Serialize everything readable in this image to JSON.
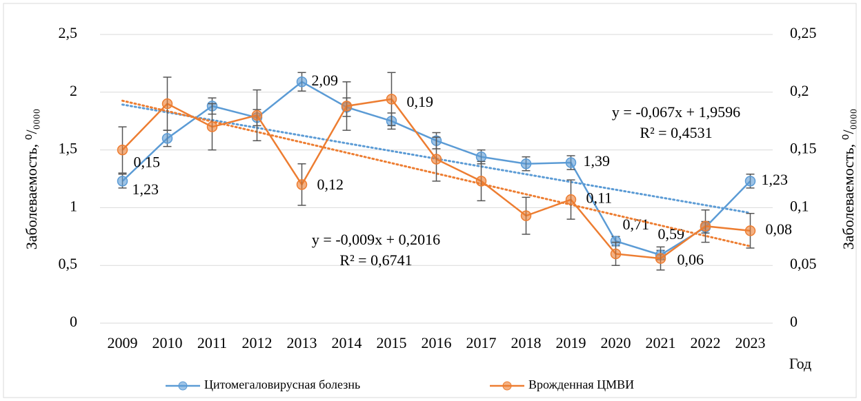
{
  "chart_data": {
    "type": "line",
    "categories": [
      "2009",
      "2010",
      "2011",
      "2012",
      "2013",
      "2014",
      "2015",
      "2016",
      "2017",
      "2018",
      "2019",
      "2020",
      "2021",
      "2022",
      "2023"
    ],
    "x_label": "Год",
    "y_label": "Заболеваемость, ⁰/₀₀₀₀",
    "y2_label": "Заболеваемость, ⁰/₀₀₀₀",
    "ylim": [
      0,
      2.5
    ],
    "yticks": [
      0,
      {
        "value": 0.5,
        "label": "0,5"
      },
      1,
      {
        "value": 1.5,
        "label": "1,5"
      },
      2,
      {
        "value": 2.5,
        "label": "2,5"
      }
    ],
    "y2lim": [
      0,
      0.25
    ],
    "y2ticks": [
      0,
      {
        "value": 0.05,
        "label": "0,05"
      },
      {
        "value": 0.1,
        "label": "0,1"
      },
      {
        "value": 0.15,
        "label": "0,15"
      },
      {
        "value": 0.2,
        "label": "0,2"
      },
      {
        "value": 0.25,
        "label": "0,25"
      }
    ],
    "grid": true,
    "legend": "bottom",
    "series": [
      {
        "name": "Цитомегаловирусная болезнь",
        "color": "#5b9bd5",
        "values": [
          1.23,
          1.6,
          1.88,
          1.78,
          2.09,
          1.87,
          1.75,
          1.58,
          1.44,
          1.38,
          1.39,
          0.71,
          0.59,
          0.83,
          1.23
        ],
        "errors": [
          0.06,
          0.07,
          0.07,
          0.07,
          0.08,
          0.08,
          0.07,
          0.07,
          0.06,
          0.06,
          0.06,
          0.04,
          0.04,
          0.05,
          0.06
        ],
        "value_labels": [
          "1,23",
          null,
          null,
          null,
          "2,09",
          null,
          null,
          null,
          null,
          null,
          "1,39",
          "0,71",
          "0,59",
          null,
          "1,23"
        ],
        "trendline": {
          "slope": -0.067,
          "intercept": 1.9596,
          "equation": "y = -0,067x + 1,9596",
          "r2": "R² = 0,4531"
        }
      },
      {
        "name": "Врожденная ЦМВИ",
        "color": "#ed7d31",
        "axis": "y2",
        "values": [
          0.15,
          0.19,
          0.17,
          0.18,
          0.12,
          0.188,
          0.194,
          0.142,
          0.123,
          0.093,
          0.107,
          0.06,
          0.056,
          0.084,
          0.08
        ],
        "errors": [
          0.02,
          0.023,
          0.02,
          0.022,
          0.018,
          0.021,
          0.023,
          0.019,
          0.017,
          0.016,
          0.017,
          0.01,
          0.01,
          0.014,
          0.015
        ],
        "value_labels": [
          "0,15",
          null,
          null,
          null,
          "0,12",
          null,
          "0,19",
          null,
          null,
          null,
          "0,11",
          null,
          "0,06",
          null,
          "0,08"
        ],
        "trendline": {
          "slope": -0.009,
          "intercept": 0.2016,
          "equation": "y = -0,009x + 0,2016",
          "r2": "R² = 0,6741"
        }
      }
    ]
  }
}
